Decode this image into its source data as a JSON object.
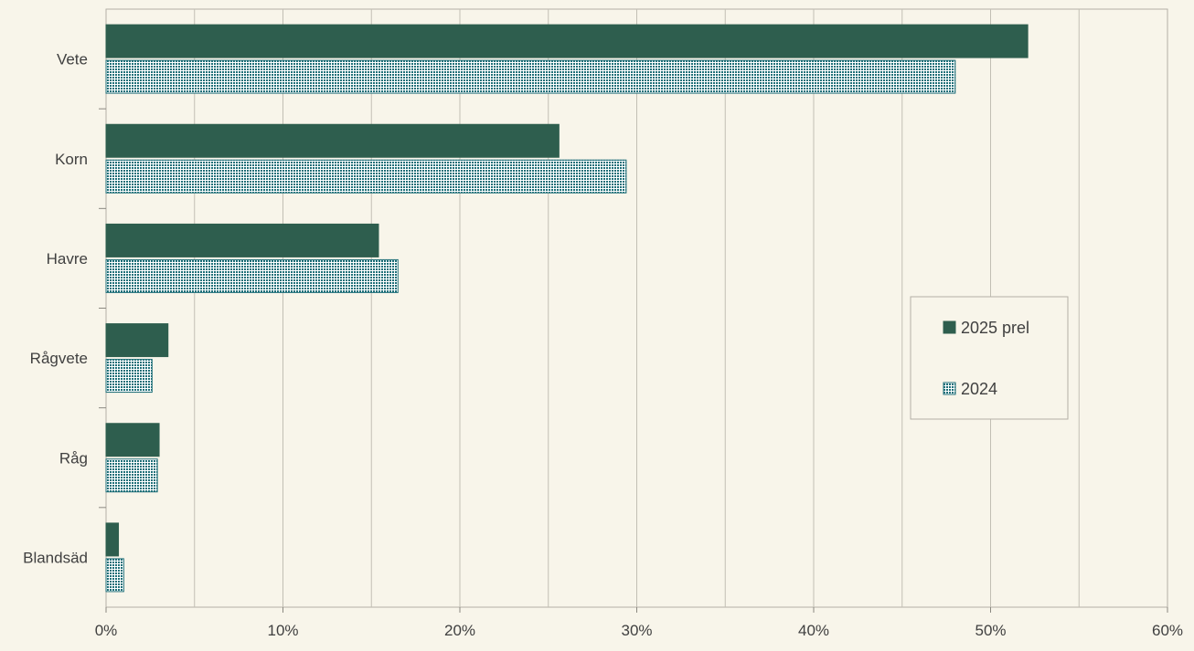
{
  "chart_data": {
    "type": "bar",
    "orientation": "horizontal",
    "categories": [
      "Vete",
      "Korn",
      "Havre",
      "Rågvete",
      "Råg",
      "Blandsäd"
    ],
    "series": [
      {
        "name": "2025 prel",
        "values": [
          52.1,
          25.6,
          15.4,
          3.5,
          3.0,
          0.7
        ],
        "color": "#2e5e4e",
        "pattern": "solid"
      },
      {
        "name": "2024",
        "values": [
          48.0,
          29.4,
          16.5,
          2.6,
          2.9,
          1.0
        ],
        "color": "#1f6f78",
        "pattern": "dotted"
      }
    ],
    "xlim": [
      0,
      60
    ],
    "x_ticks": [
      0,
      10,
      20,
      30,
      40,
      50,
      60
    ],
    "x_tick_labels": [
      "0%",
      "10%",
      "20%",
      "30%",
      "40%",
      "50%",
      "60%"
    ],
    "grid": true,
    "legend_position": "right",
    "title": "",
    "xlabel": "",
    "ylabel": ""
  }
}
